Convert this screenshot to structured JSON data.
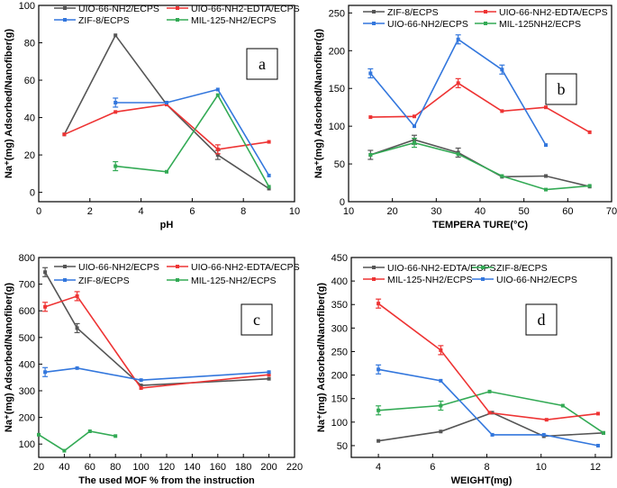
{
  "chart_data": [
    {
      "type": "line",
      "panel_label": "a",
      "xlabel": "pH",
      "ylabel": "Na⁺(mg) Adsorbed/Nanofiber(g)",
      "xlim": [
        0,
        10
      ],
      "ylim": [
        -5,
        100
      ],
      "xticks": [
        0,
        2,
        4,
        6,
        8,
        10
      ],
      "yticks": [
        0,
        20,
        40,
        60,
        80,
        100
      ],
      "legend_position": "top",
      "series": [
        {
          "name": "UIO-66-NH2/ECPS",
          "color": "#555555",
          "x": [
            1,
            3,
            5,
            7,
            9
          ],
          "y": [
            31,
            84,
            47,
            20,
            2
          ],
          "errbars": [
            3
          ]
        },
        {
          "name": "UIO-66-NH2-EDTA/ECPS",
          "color": "#ee3333",
          "x": [
            1,
            3,
            5,
            7,
            9
          ],
          "y": [
            31,
            43,
            47,
            23,
            27
          ],
          "errbars": [
            3
          ]
        },
        {
          "name": "ZIF-8/ECPS",
          "color": "#3377dd",
          "x": [
            3,
            5,
            7,
            9
          ],
          "y": [
            48,
            48,
            55,
            9
          ],
          "errbars": [
            0
          ]
        },
        {
          "name": "MIL-125-NH2/ECPS",
          "color": "#33aa55",
          "x": [
            3,
            5,
            7,
            9
          ],
          "y": [
            14,
            11,
            52,
            3
          ],
          "errbars": [
            0
          ]
        }
      ]
    },
    {
      "type": "line",
      "panel_label": "b",
      "xlabel": "TEMPERA TURE(°C)",
      "ylabel": "Na⁺(mg) Adsorbed/Nanofiber(g)",
      "xlim": [
        10,
        70
      ],
      "ylim": [
        0,
        260
      ],
      "xticks": [
        10,
        20,
        30,
        40,
        50,
        60,
        70
      ],
      "yticks": [
        0,
        50,
        100,
        150,
        200,
        250
      ],
      "legend_position": "top",
      "series": [
        {
          "name": "ZIF-8/ECPS",
          "color": "#555555",
          "x": [
            15,
            25,
            35,
            45,
            55,
            65
          ],
          "y": [
            62,
            82,
            65,
            33,
            34,
            20
          ],
          "errbars": [
            0,
            1,
            2
          ]
        },
        {
          "name": "UIO-66-NH2-EDTA/ECPS",
          "color": "#ee3333",
          "x": [
            15,
            25,
            35,
            45,
            55,
            65
          ],
          "y": [
            112,
            113,
            157,
            120,
            125,
            92
          ],
          "errbars": [
            2
          ]
        },
        {
          "name": "UIO-66-NH2/ECPS",
          "color": "#3377dd",
          "x": [
            15,
            25,
            35,
            45,
            55
          ],
          "y": [
            170,
            100,
            215,
            175,
            75
          ],
          "errbars": [
            0,
            2,
            3
          ]
        },
        {
          "name": "MIL-125NH2/ECPS",
          "color": "#33aa55",
          "x": [
            15,
            25,
            35,
            45,
            55,
            65
          ],
          "y": [
            62,
            78,
            63,
            34,
            16,
            21
          ],
          "errbars": [
            1
          ]
        }
      ]
    },
    {
      "type": "line",
      "panel_label": "c",
      "xlabel": "The used MOF % from the instruction",
      "ylabel": "Na⁺(mg) Adsorbed/Nanofiber(g)",
      "xlim": [
        20,
        220
      ],
      "ylim": [
        50,
        800
      ],
      "xticks": [
        20,
        40,
        60,
        80,
        100,
        120,
        140,
        160,
        180,
        200,
        220
      ],
      "yticks": [
        100,
        200,
        300,
        400,
        500,
        600,
        700,
        800
      ],
      "legend_position": "top",
      "series": [
        {
          "name": "UIO-66-NH2/ECPS",
          "color": "#555555",
          "x": [
            25,
            50,
            100,
            200
          ],
          "y": [
            745,
            535,
            320,
            345
          ],
          "errbars": [
            0,
            1
          ]
        },
        {
          "name": "UIO-66-NH2-EDTA/ECPS",
          "color": "#ee3333",
          "x": [
            25,
            50,
            100,
            200
          ],
          "y": [
            615,
            655,
            310,
            360
          ],
          "errbars": [
            0,
            1
          ]
        },
        {
          "name": "ZIF-8/ECPS",
          "color": "#3377dd",
          "x": [
            25,
            50,
            100,
            200
          ],
          "y": [
            370,
            385,
            340,
            370
          ],
          "errbars": [
            0
          ]
        },
        {
          "name": "MIL-125-NH2/ECPS",
          "color": "#33aa55",
          "x": [
            20,
            40,
            60,
            80
          ],
          "y": [
            135,
            75,
            148,
            130
          ],
          "errbars": []
        }
      ]
    },
    {
      "type": "line",
      "panel_label": "d",
      "xlabel": "WEIGHT(mg)",
      "ylabel": "Na⁺(mg) Adsorbed/Nanofiber(g)",
      "xlim": [
        3,
        12.6
      ],
      "ylim": [
        25,
        450
      ],
      "xticks": [
        4,
        6,
        8,
        10,
        12
      ],
      "yticks": [
        50,
        100,
        150,
        200,
        250,
        300,
        350,
        400,
        450
      ],
      "legend_position": "top",
      "series": [
        {
          "name": "UIO-66-NH2-EDTA/ECPS",
          "color": "#555555",
          "x": [
            4,
            6.3,
            8.2,
            10.1,
            12.3
          ],
          "y": [
            60,
            80,
            120,
            70,
            77
          ],
          "errbars": []
        },
        {
          "name": "ZIF-8/ECPS",
          "color": "#33aa55",
          "x": [
            4,
            6.3,
            8.1,
            10.8,
            12.3
          ],
          "y": [
            125,
            135,
            165,
            135,
            77
          ],
          "errbars": [
            0,
            1
          ]
        },
        {
          "name": "MIL-125-NH2/ECPS",
          "color": "#ee3333",
          "x": [
            4,
            6.3,
            8.1,
            10.2,
            12.1
          ],
          "y": [
            352,
            253,
            120,
            105,
            118
          ],
          "errbars": [
            0,
            1
          ]
        },
        {
          "name": "UIO-66-NH2/ECPS",
          "color": "#3377dd",
          "x": [
            4,
            6.3,
            8.2,
            10.1,
            12.1
          ],
          "y": [
            212,
            188,
            73,
            73,
            50
          ],
          "errbars": [
            0
          ]
        }
      ]
    }
  ]
}
